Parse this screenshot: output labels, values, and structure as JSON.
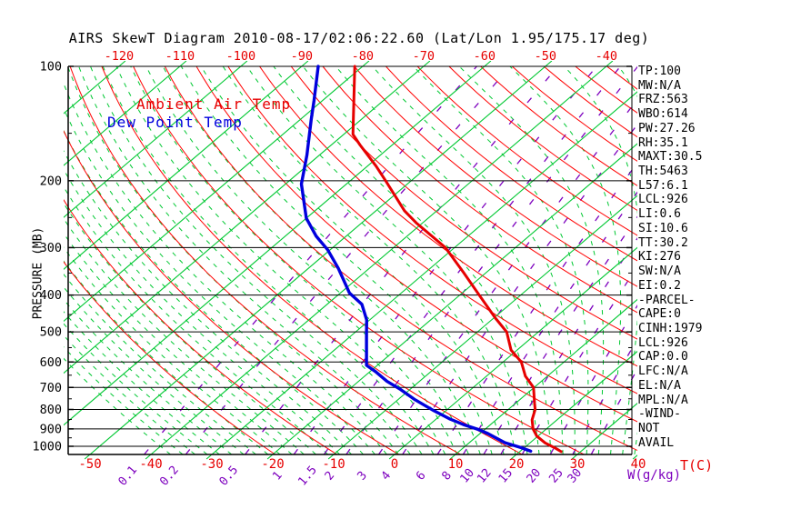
{
  "title": "AIRS SkewT Diagram 2010-08-17/02:06:22.60 (Lat/Lon 1.95/175.17 deg)",
  "legend": {
    "temperature": "Ambient Air Temp",
    "dew_point": "Dew Point Temp"
  },
  "axes": {
    "pressure_label": "PRESSURE (MB)",
    "pressure_ticks": [
      100,
      200,
      300,
      400,
      500,
      600,
      700,
      800,
      900,
      1000
    ],
    "temp_top_labels": [
      -120,
      -110,
      -100,
      -90,
      -80,
      -70,
      -60,
      -50,
      -40
    ],
    "temp_bottom_labels": [
      -50,
      -40,
      -30,
      -20,
      -10,
      0,
      10,
      20,
      30,
      40
    ],
    "temp_unit": "T(C)",
    "mixing_ratio_labels": [
      0.1,
      0.2,
      0.5,
      1,
      1.5,
      2,
      3,
      4,
      6,
      8,
      10,
      12,
      15,
      20,
      25,
      30
    ],
    "mixing_ratio_unit": "W(g/kg)"
  },
  "side_panel": {
    "lines": [
      "TP:100",
      "MW:N/A",
      "FRZ:563",
      "WBO:614",
      "PW:27.26",
      "RH:35.1",
      "MAXT:30.5",
      "TH:5463",
      "L57:6.1",
      "LCL:926",
      "LI:0.6",
      "SI:10.6",
      "TT:30.2",
      "KI:276",
      "SW:N/A",
      "EI:0.2",
      "-PARCEL-",
      "CAPE:0",
      "CINH:1979",
      "LCL:926",
      "CAP:0.0",
      "LFC:N/A",
      "EL:N/A",
      "MPL:N/A",
      "-WIND-",
      "NOT",
      "AVAIL"
    ]
  },
  "colors": {
    "isotherm": "#00c832",
    "moist_adiabat": "#00c832",
    "dry_adiabat": "#ff0000",
    "mixing_ratio": "#7d00be",
    "temperature_curve": "#e60000",
    "dew_point_curve": "#0000dd",
    "axis": "#000000",
    "top_label": "#e60000",
    "bottom_label": "#e60000"
  },
  "chart_data": {
    "type": "line",
    "subtype": "skewt_log_p",
    "pressure_range_mb": [
      100,
      1050
    ],
    "grid": {
      "isotherms_C": {
        "start": -120,
        "end": 40,
        "step": 10
      },
      "dry_adiabats_theta_K": {
        "start": 250,
        "end": 470,
        "step": 10
      },
      "moist_adiabats_thetaw_C": {
        "start": -40,
        "end": 38,
        "step": 2
      },
      "mixing_ratio_g_kg": [
        0.1,
        0.2,
        0.5,
        1,
        1.5,
        2,
        3,
        4,
        6,
        8,
        10,
        12,
        15,
        20,
        25,
        30
      ]
    },
    "series": [
      {
        "name": "Ambient Air Temp",
        "units": [
          "pressure_mb",
          "temp_C"
        ],
        "points": [
          [
            100,
            -81.3
          ],
          [
            151,
            -68.5
          ],
          [
            161,
            -65.3
          ],
          [
            183,
            -58.6
          ],
          [
            200,
            -54.2
          ],
          [
            240,
            -45.3
          ],
          [
            258,
            -41.1
          ],
          [
            300,
            -31.5
          ],
          [
            349,
            -23.7
          ],
          [
            400,
            -16.8
          ],
          [
            460,
            -9.7
          ],
          [
            500,
            -5.2
          ],
          [
            558,
            -1.0
          ],
          [
            600,
            3.0
          ],
          [
            654,
            6.4
          ],
          [
            700,
            9.9
          ],
          [
            768,
            13.0
          ],
          [
            800,
            14.4
          ],
          [
            852,
            15.9
          ],
          [
            900,
            17.8
          ],
          [
            940,
            19.8
          ],
          [
            980,
            22.5
          ],
          [
            1013,
            25.3
          ],
          [
            1033,
            26.8
          ]
        ]
      },
      {
        "name": "Dew Point Temp",
        "units": [
          "pressure_mb",
          "temp_C"
        ],
        "points": [
          [
            100,
            -87.3
          ],
          [
            123,
            -81.4
          ],
          [
            138,
            -78.2
          ],
          [
            171,
            -72.1
          ],
          [
            204,
            -67.4
          ],
          [
            251,
            -60.0
          ],
          [
            280,
            -54.9
          ],
          [
            304,
            -50.4
          ],
          [
            340,
            -45.1
          ],
          [
            395,
            -38.5
          ],
          [
            423,
            -34.3
          ],
          [
            465,
            -30.5
          ],
          [
            505,
            -27.9
          ],
          [
            612,
            -21.8
          ],
          [
            636,
            -19.1
          ],
          [
            675,
            -15.3
          ],
          [
            709,
            -11.5
          ],
          [
            752,
            -7.4
          ],
          [
            806,
            -2.0
          ],
          [
            848,
            2.3
          ],
          [
            877,
            5.6
          ],
          [
            901,
            8.7
          ],
          [
            926,
            11.3
          ],
          [
            978,
            15.8
          ],
          [
            1008,
            19.4
          ],
          [
            1030,
            21.7
          ]
        ]
      }
    ]
  }
}
